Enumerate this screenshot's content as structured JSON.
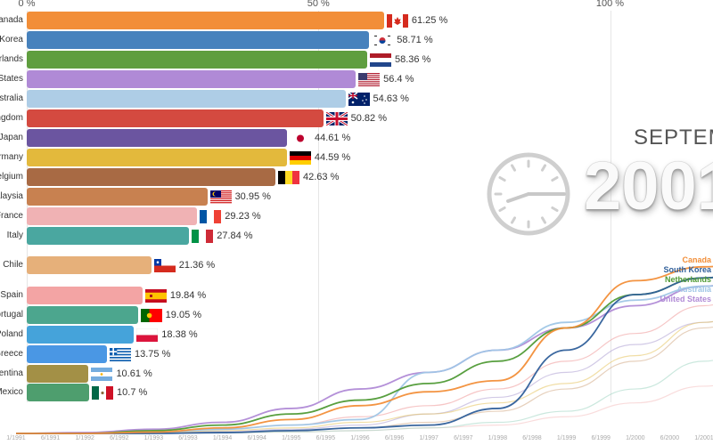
{
  "period": {
    "month": "SEPTEMBER",
    "year": "2001"
  },
  "chart_data": [
    {
      "type": "bar",
      "title": "",
      "xlabel": "",
      "xlim": [
        0,
        100
      ],
      "x_ticks": [
        "0 %",
        "50 %",
        "100 %"
      ],
      "categories": [
        "Canada",
        "South Korea",
        "Netherlands",
        "United States",
        "Australia",
        "United Kingdom",
        "Japan",
        "Germany",
        "Belgium",
        "Malaysia",
        "France",
        "Italy",
        "Chile",
        "Spain",
        "Portugal",
        "Poland",
        "Greece",
        "Argentina",
        "Mexico"
      ],
      "values": [
        61.25,
        58.71,
        58.36,
        56.4,
        54.63,
        50.82,
        44.61,
        44.59,
        42.63,
        30.95,
        29.23,
        27.84,
        21.36,
        19.84,
        19.05,
        18.38,
        13.75,
        10.61,
        10.7
      ],
      "value_labels": [
        "61.25 %",
        "58.71 %",
        "58.36 %",
        "56.4 %",
        "54.63 %",
        "50.82 %",
        "44.61 %",
        "44.59 %",
        "42.63 %",
        "30.95 %",
        "29.23 %",
        "27.84 %",
        "21.36 %",
        "19.84 %",
        "19.05 %",
        "18.38 %",
        "13.75 %",
        "10.61 %",
        "10.7 %"
      ],
      "colors": [
        "#f28e38",
        "#4782bd",
        "#5f9e3f",
        "#b08ad6",
        "#aecde6",
        "#d44a40",
        "#6b55a0",
        "#e3b93c",
        "#a86a44",
        "#c88150",
        "#f0b2b4",
        "#4aa7a0",
        "#e6b07a",
        "#f3a4a4",
        "#4ca68e",
        "#45a3da",
        "#4a97e4",
        "#a39046",
        "#4e9e6e"
      ],
      "flags": [
        "canada-flag",
        "south-korea-flag",
        "netherlands-flag",
        "united-states-flag",
        "australia-flag",
        "united-kingdom-flag",
        "japan-flag",
        "germany-flag",
        "belgium-flag",
        "malaysia-flag",
        "france-flag",
        "italy-flag",
        "chile-flag",
        "spain-flag",
        "portugal-flag",
        "poland-flag",
        "greece-flag",
        "argentina-flag",
        "mexico-flag"
      ]
    },
    {
      "type": "line",
      "x_ticks": [
        "1/1991",
        "6/1991",
        "1/1992",
        "6/1992",
        "1/1993",
        "6/1993",
        "1/1994",
        "6/1994",
        "1/1995",
        "6/1995",
        "1/1996",
        "6/1996",
        "1/1997",
        "6/1997",
        "1/1998",
        "6/1998",
        "1/1999",
        "6/1999",
        "1/2000",
        "6/2000",
        "1/2001"
      ],
      "x_years": [
        1991,
        1992,
        1993,
        1994,
        1995,
        1996,
        1997,
        1998,
        1999,
        2000,
        2001,
        2001.67
      ],
      "series": [
        {
          "name": "Canada",
          "color": "#f28e38",
          "labeled": true,
          "values": [
            0,
            0,
            0.5,
            2,
            5,
            10,
            15,
            19,
            38,
            55,
            60,
            61.25
          ]
        },
        {
          "name": "South Korea",
          "color": "#2f5f9a",
          "labeled": true,
          "values": [
            0,
            0,
            0,
            0.3,
            1,
            2,
            3,
            9,
            30,
            50,
            56,
            58.71
          ]
        },
        {
          "name": "Netherlands",
          "color": "#4f9a35",
          "labeled": true,
          "values": [
            0,
            0,
            1,
            3,
            7,
            12,
            18,
            26,
            38,
            50,
            56,
            58.36
          ]
        },
        {
          "name": "Australia",
          "color": "#9fc6e6",
          "labeled": true,
          "values": [
            0,
            0,
            0.5,
            1.5,
            3,
            5,
            22,
            30,
            40,
            48,
            53,
            54.63
          ]
        },
        {
          "name": "United States",
          "color": "#b08ad6",
          "labeled": true,
          "values": [
            0,
            0.3,
            1.5,
            4,
            9,
            16,
            22,
            30,
            38,
            46,
            53,
            56.4
          ]
        },
        {
          "name": "United Kingdom",
          "color": "#f0a0a0",
          "labeled": false,
          "values": [
            0,
            0,
            0.5,
            1.5,
            3,
            6,
            10,
            16,
            26,
            36,
            46,
            50.82
          ]
        },
        {
          "name": "Germany",
          "color": "#e8c86a",
          "labeled": false,
          "values": [
            0,
            0,
            0.3,
            1,
            2,
            4,
            7,
            11,
            18,
            28,
            40,
            44.59
          ]
        },
        {
          "name": "Japan",
          "color": "#b4a6d6",
          "labeled": false,
          "values": [
            0,
            0,
            0.2,
            0.6,
            1.5,
            3,
            7,
            13,
            22,
            32,
            40,
            44.61
          ]
        },
        {
          "name": "Belgium",
          "color": "#d6b090",
          "labeled": false,
          "values": [
            0,
            0,
            0.2,
            0.5,
            1,
            2,
            4,
            8,
            16,
            26,
            38,
            42.63
          ]
        },
        {
          "name": "Malaysia",
          "color": "#a8d8c8",
          "labeled": false,
          "values": [
            0,
            0,
            0,
            0.2,
            0.5,
            1,
            2,
            4,
            8,
            16,
            26,
            30.95
          ]
        },
        {
          "name": "Spain",
          "color": "#f5c4c4",
          "labeled": false,
          "values": [
            0,
            0,
            0,
            0.2,
            0.5,
            1,
            2,
            3,
            6,
            11,
            17,
            19.84
          ]
        }
      ],
      "legend_placement": "inline-at-line-ends"
    }
  ]
}
